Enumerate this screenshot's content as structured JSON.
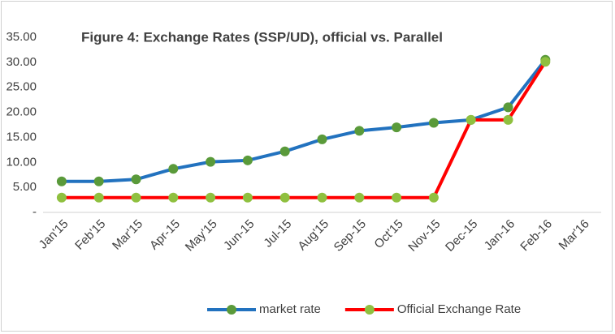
{
  "chart_data": {
    "type": "line",
    "title": "Figure 4: Exchange Rates (SSP/UD), official vs. Parallel",
    "categories": [
      "Jan'15",
      "Feb'15",
      "Mar'15",
      "Apr-15",
      "May'15",
      "Jun-15",
      "Jul-15",
      "Aug'15",
      "Sep-15",
      "Oct'15",
      "Nov-15",
      "Dec-15",
      "Jan-16",
      "Feb-16",
      "Mar'16"
    ],
    "series": [
      {
        "name": "market rate",
        "color": "#2272bf",
        "marker_color": "#5a9a3a",
        "values": [
          6.2,
          6.2,
          6.6,
          8.7,
          10.1,
          10.4,
          12.2,
          14.6,
          16.3,
          17.0,
          17.9,
          18.5,
          21.0,
          30.5,
          null
        ]
      },
      {
        "name": "Official Exchange Rate",
        "color": "#ff0000",
        "marker_color": "#8fc03f",
        "values": [
          2.95,
          2.95,
          2.95,
          2.95,
          2.95,
          2.95,
          2.95,
          2.95,
          2.95,
          2.95,
          2.95,
          18.5,
          18.5,
          30.1,
          null
        ]
      }
    ],
    "ylim": [
      0,
      35
    ],
    "yticks": [
      {
        "value": 0,
        "label": "-"
      },
      {
        "value": 5,
        "label": "5.00"
      },
      {
        "value": 10,
        "label": "10.00"
      },
      {
        "value": 15,
        "label": "15.00"
      },
      {
        "value": 20,
        "label": "20.00"
      },
      {
        "value": 25,
        "label": "25.00"
      },
      {
        "value": 30,
        "label": "30.00"
      },
      {
        "value": 35,
        "label": "35.00"
      }
    ],
    "grid": false,
    "legend": "bottom"
  }
}
